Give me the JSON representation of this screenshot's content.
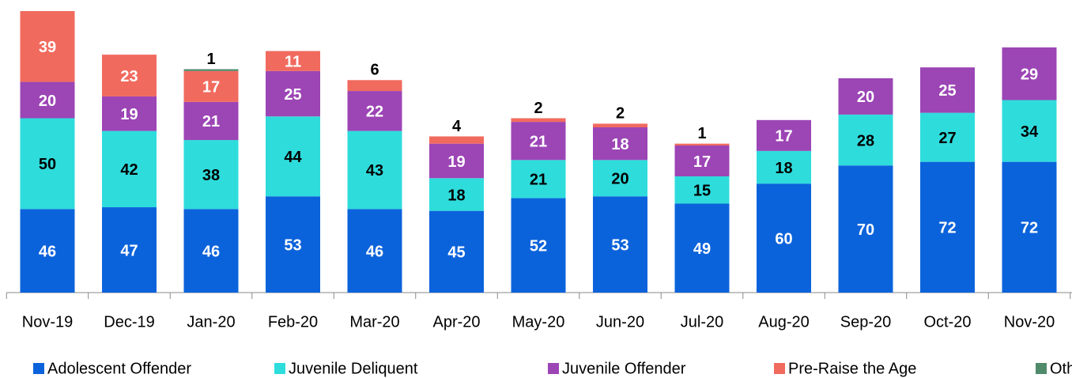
{
  "chart_data": {
    "type": "stacked-bar",
    "categories": [
      "Nov-19",
      "Dec-19",
      "Jan-20",
      "Feb-20",
      "Mar-20",
      "Apr-20",
      "May-20",
      "Jun-20",
      "Jul-20",
      "Aug-20",
      "Sep-20",
      "Oct-20",
      "Nov-20"
    ],
    "series": [
      {
        "name": "Adolescent Offender",
        "color": "#0b63db",
        "values": [
          46,
          47,
          46,
          53,
          46,
          45,
          52,
          53,
          49,
          60,
          70,
          72,
          72
        ]
      },
      {
        "name": "Juvenile Deliquent",
        "color": "#2fdcdc",
        "values": [
          50,
          42,
          38,
          44,
          43,
          18,
          21,
          20,
          15,
          18,
          28,
          27,
          34
        ]
      },
      {
        "name": "Juvenile Offender",
        "color": "#9c45b5",
        "values": [
          20,
          19,
          21,
          25,
          22,
          19,
          21,
          18,
          17,
          17,
          20,
          25,
          29
        ]
      },
      {
        "name": "Pre-Raise the Age",
        "color": "#f16a5e",
        "values": [
          39,
          23,
          17,
          11,
          6,
          4,
          2,
          2,
          1,
          null,
          null,
          null,
          null
        ]
      },
      {
        "name": "Other",
        "color": "#4f8a6b",
        "values": [
          null,
          null,
          1,
          null,
          null,
          null,
          null,
          null,
          null,
          null,
          null,
          null,
          null
        ]
      }
    ],
    "legend": "bottom"
  }
}
